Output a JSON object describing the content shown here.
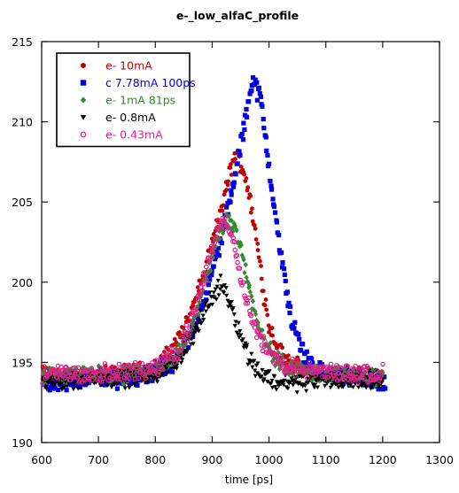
{
  "chart_data": {
    "type": "scatter",
    "title": "e-_low_alfaC_profile",
    "xlabel": "time [ps]",
    "ylabel": "",
    "xlim": [
      600,
      1300
    ],
    "ylim": [
      190,
      215
    ],
    "xticks": [
      600,
      700,
      800,
      900,
      1000,
      1100,
      1200,
      1300
    ],
    "yticks": [
      190,
      195,
      200,
      205,
      210,
      215
    ],
    "legend_position": "top-left",
    "grid": false,
    "series": [
      {
        "name": "e- 10mA",
        "color": "#c00000",
        "marker": "hexagon",
        "x": [
          600,
          650,
          700,
          750,
          800,
          820,
          840,
          860,
          880,
          900,
          910,
          920,
          930,
          940,
          950,
          960,
          970,
          980,
          990,
          1000,
          1020,
          1040,
          1060,
          1100,
          1150,
          1200
        ],
        "y": [
          194.2,
          194.1,
          194.2,
          194.3,
          194.6,
          195.4,
          196.4,
          197.8,
          199.8,
          202.3,
          203.7,
          205.1,
          206.7,
          207.9,
          207.5,
          206.4,
          204.5,
          202.2,
          199.6,
          197.3,
          195.6,
          194.9,
          194.5,
          194.3,
          194.2,
          194.1
        ]
      },
      {
        "name": "c 7.78mA 100ps",
        "color": "#0000e0",
        "marker": "square",
        "x": [
          600,
          650,
          700,
          750,
          800,
          840,
          870,
          900,
          920,
          940,
          955,
          970,
          985,
          1000,
          1020,
          1040,
          1060,
          1080,
          1100,
          1150,
          1205
        ],
        "y": [
          193.7,
          193.8,
          194.0,
          194.0,
          194.3,
          195.2,
          197.2,
          200.6,
          203.3,
          206.5,
          209.4,
          212.7,
          211.5,
          207.3,
          201.8,
          197.6,
          195.6,
          194.6,
          194.2,
          194.1,
          193.6
        ]
      },
      {
        "name": "e- 1mA 81ps",
        "color": "#2e8b2e",
        "marker": "diamond",
        "x": [
          600,
          650,
          700,
          750,
          800,
          840,
          870,
          890,
          910,
          925,
          940,
          955,
          970,
          990,
          1010,
          1040,
          1080,
          1120,
          1160,
          1200
        ],
        "y": [
          194.1,
          194.1,
          194.2,
          194.2,
          194.4,
          195.5,
          197.6,
          200.4,
          202.8,
          204.0,
          203.4,
          201.5,
          198.8,
          196.6,
          195.2,
          194.6,
          194.3,
          194.2,
          194.1,
          194.0
        ]
      },
      {
        "name": "e- 0.8mA",
        "color": "#000000",
        "marker": "triangle-down",
        "x": [
          600,
          650,
          700,
          750,
          800,
          840,
          870,
          895,
          915,
          930,
          945,
          965,
          985,
          1010,
          1040,
          1080,
          1120,
          1160,
          1200
        ],
        "y": [
          193.8,
          193.9,
          194.0,
          194.0,
          194.2,
          195.1,
          196.9,
          198.8,
          199.8,
          199.0,
          197.2,
          195.3,
          194.3,
          193.8,
          193.7,
          193.8,
          193.9,
          193.9,
          193.9
        ]
      },
      {
        "name": "e- 0.43mA",
        "color": "#e0208c",
        "marker": "circle-open",
        "x": [
          600,
          650,
          700,
          750,
          800,
          840,
          870,
          895,
          915,
          930,
          945,
          960,
          980,
          1000,
          1030,
          1060,
          1100,
          1150,
          1200
        ],
        "y": [
          194.3,
          194.3,
          194.3,
          194.4,
          194.6,
          195.7,
          198.0,
          201.5,
          203.8,
          203.6,
          201.4,
          199.0,
          196.8,
          195.5,
          194.8,
          194.5,
          194.4,
          194.3,
          194.3
        ]
      }
    ]
  }
}
